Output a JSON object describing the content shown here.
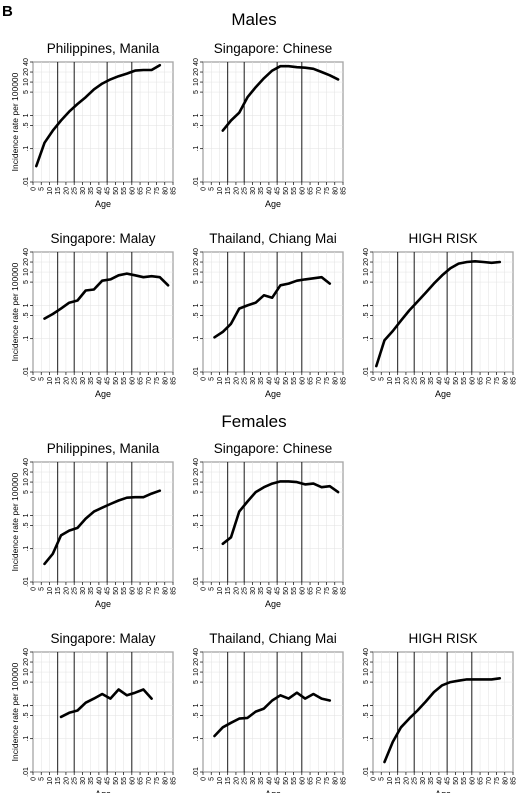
{
  "panel_letter": "B",
  "groups": [
    {
      "title": "Males"
    },
    {
      "title": "Females"
    }
  ],
  "common": {
    "ylabel": "Incidence rate per 100000",
    "xlabel": "Age",
    "x_ticks": [
      "0",
      "5",
      "10",
      "15",
      "20",
      "25",
      "30",
      "35",
      "40",
      "45",
      "50",
      "55",
      "60",
      "65",
      "70",
      "75",
      "80",
      "85"
    ],
    "y_ticks": [
      ".01",
      ".1",
      ".5",
      "1",
      "5",
      "10",
      "20",
      "40"
    ],
    "y_scale": "log",
    "xlim": [
      0,
      85
    ],
    "ylim": [
      0.01,
      40
    ],
    "vertical_reference_lines": [
      15,
      25,
      45,
      60
    ]
  },
  "chart_data": [
    {
      "type": "line",
      "group": "Males",
      "title": "Philippines, Manila",
      "x": [
        2,
        7,
        12,
        17,
        22,
        27,
        32,
        37,
        42,
        47,
        52,
        57,
        62,
        67,
        72,
        77
      ],
      "values": [
        0.03,
        0.15,
        0.35,
        0.7,
        1.3,
        2.2,
        3.5,
        6,
        9,
        12,
        15,
        18,
        22,
        23,
        23,
        32
      ]
    },
    {
      "type": "line",
      "group": "Males",
      "title": "Singapore: Chinese",
      "x": [
        12,
        17,
        22,
        27,
        32,
        37,
        42,
        47,
        52,
        57,
        62,
        67,
        72,
        77,
        82
      ],
      "values": [
        0.35,
        0.7,
        1.2,
        3.5,
        7,
        13,
        22,
        30,
        30,
        28,
        27,
        25,
        20,
        16,
        12
      ]
    },
    {
      "type": "line",
      "group": "Males",
      "title": "Singapore: Malay",
      "x": [
        7,
        12,
        17,
        22,
        27,
        32,
        37,
        42,
        47,
        52,
        57,
        62,
        67,
        72,
        77,
        82
      ],
      "values": [
        0.4,
        0.55,
        0.8,
        1.2,
        1.4,
        2.8,
        3,
        5.5,
        6,
        8,
        9,
        8,
        7,
        7.5,
        7,
        4
      ]
    },
    {
      "type": "line",
      "group": "Males",
      "title": "Thailand, Chiang Mai",
      "x": [
        7,
        12,
        17,
        22,
        27,
        32,
        37,
        42,
        47,
        52,
        57,
        62,
        67,
        72,
        77
      ],
      "values": [
        0.11,
        0.16,
        0.28,
        0.8,
        1.0,
        1.2,
        2.0,
        1.7,
        4,
        4.5,
        5.5,
        6,
        6.5,
        7,
        4.5
      ]
    },
    {
      "type": "line",
      "group": "Males",
      "title": "HIGH RISK",
      "x": [
        2,
        7,
        12,
        17,
        22,
        27,
        32,
        37,
        42,
        47,
        52,
        57,
        62,
        67,
        72,
        77
      ],
      "values": [
        0.015,
        0.09,
        0.17,
        0.35,
        0.7,
        1.3,
        2.4,
        4.5,
        8,
        13,
        18,
        20,
        21,
        20,
        19,
        20
      ]
    },
    {
      "type": "line",
      "group": "Females",
      "title": "Philippines, Manila",
      "x": [
        7,
        12,
        17,
        22,
        27,
        32,
        37,
        42,
        47,
        52,
        57,
        62,
        67,
        72,
        77
      ],
      "values": [
        0.035,
        0.07,
        0.25,
        0.35,
        0.42,
        0.8,
        1.3,
        1.7,
        2.2,
        2.8,
        3.4,
        3.5,
        3.5,
        4.5,
        5.5
      ]
    },
    {
      "type": "line",
      "group": "Females",
      "title": "Singapore: Chinese",
      "x": [
        12,
        17,
        22,
        27,
        32,
        37,
        42,
        47,
        52,
        57,
        62,
        67,
        72,
        77,
        82
      ],
      "values": [
        0.14,
        0.22,
        1.3,
        2.6,
        5,
        7,
        9,
        10.5,
        10.5,
        10,
        8.5,
        9,
        7,
        7.5,
        5
      ]
    },
    {
      "type": "line",
      "group": "Females",
      "title": "Singapore: Malay",
      "x": [
        17,
        22,
        27,
        32,
        37,
        42,
        47,
        52,
        57,
        62,
        67,
        72
      ],
      "values": [
        0.45,
        0.6,
        0.7,
        1.2,
        1.6,
        2.2,
        1.6,
        3,
        2.0,
        2.4,
        3.0,
        1.6
      ]
    },
    {
      "type": "line",
      "group": "Females",
      "title": "Thailand, Chiang Mai",
      "x": [
        7,
        12,
        17,
        22,
        27,
        32,
        37,
        42,
        47,
        52,
        57,
        62,
        67,
        72,
        77
      ],
      "values": [
        0.12,
        0.22,
        0.3,
        0.4,
        0.42,
        0.65,
        0.8,
        1.4,
        2.0,
        1.6,
        2.4,
        1.6,
        2.2,
        1.6,
        1.4
      ]
    },
    {
      "type": "line",
      "group": "Females",
      "title": "HIGH RISK",
      "x": [
        7,
        12,
        17,
        22,
        27,
        32,
        37,
        42,
        47,
        52,
        57,
        62,
        67,
        72,
        77
      ],
      "values": [
        0.02,
        0.08,
        0.22,
        0.4,
        0.7,
        1.3,
        2.5,
        4,
        5,
        5.5,
        6,
        6,
        6,
        6,
        6.5
      ]
    }
  ]
}
